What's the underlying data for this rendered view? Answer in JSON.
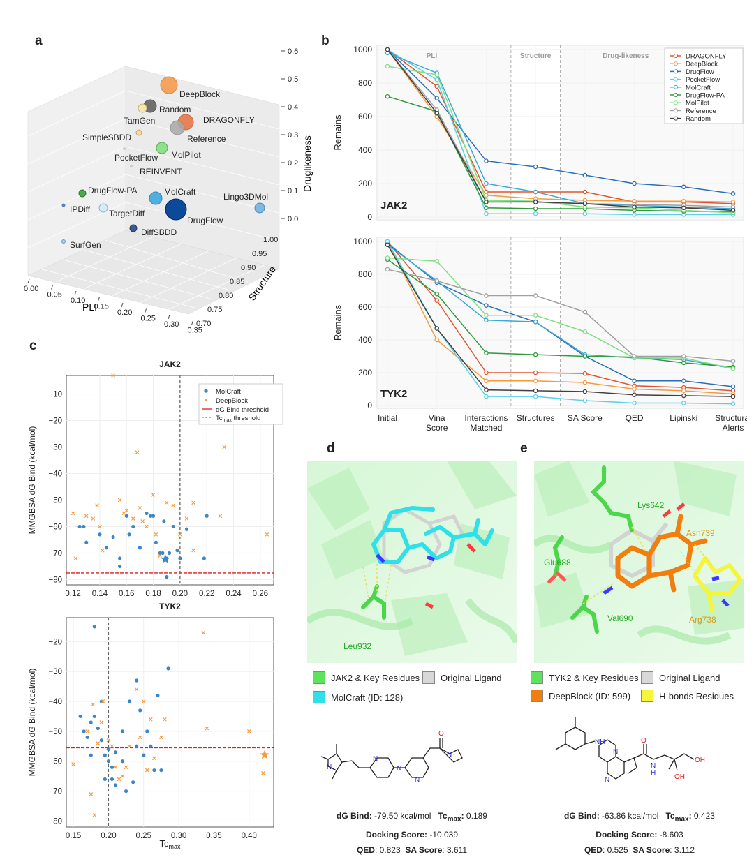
{
  "panels": {
    "a": "a",
    "b": "b",
    "c": "c",
    "d": "d",
    "e": "e"
  },
  "panel_a": {
    "xlabel": "PLI",
    "ylabel": "Structure",
    "zlabel": "Druglikeness",
    "x_ticks": [
      "0.00",
      "0.05",
      "0.10",
      "0.15",
      "0.20",
      "0.25",
      "0.30",
      "0.35"
    ],
    "y_ticks": [
      "0.70",
      "0.75",
      "0.80",
      "0.85",
      "0.90",
      "0.95",
      "1.00"
    ],
    "z_ticks": [
      "0.0",
      "0.1",
      "0.2",
      "0.3",
      "0.4",
      "0.5",
      "0.6"
    ]
  },
  "panel_b": {
    "ylabel": "Remains",
    "sections": [
      "PLI",
      "Structure",
      "Drug-likeness"
    ],
    "x_ticks": [
      "Initial",
      "Vina\nScore",
      "Interactions\nMatched",
      "Structures",
      "SA Score",
      "QED",
      "Lipinski",
      "Structural\nAlerts"
    ],
    "y_ticks": [
      "0",
      "200",
      "400",
      "600",
      "800",
      "1000"
    ],
    "top_label": "JAK2",
    "bottom_label": "TYK2"
  },
  "panel_c": {
    "top_title": "JAK2",
    "bottom_title": "TYK2",
    "ylabel": "MMGBSA dG Bind (kcal/mol)",
    "xlabel": "Tc",
    "xlabel_sub": "max",
    "legend": [
      "MolCraft",
      "DeepBlock",
      "dG Bind threshold",
      "Tc"
    ],
    "legend_tc_sub": "max",
    "legend_tc_tail": " threshold",
    "top_x_ticks": [
      "0.12",
      "0.14",
      "0.16",
      "0.18",
      "0.20",
      "0.22",
      "0.24",
      "0.26"
    ],
    "top_y_ticks": [
      "-10",
      "-20",
      "-30",
      "-40",
      "-50",
      "-60",
      "-70",
      "-80"
    ],
    "bottom_x_ticks": [
      "0.15",
      "0.20",
      "0.25",
      "0.30",
      "0.35",
      "0.40"
    ],
    "bottom_y_ticks": [
      "-20",
      "-30",
      "-40",
      "-50",
      "-60",
      "-70",
      "-80"
    ]
  },
  "panel_d": {
    "residues": [
      "Leu932"
    ],
    "legend": [
      "JAK2 & Key Residues",
      "Original Ligand",
      "MolCraft (ID: 128)"
    ],
    "dG_label": "dG Bind",
    "dG_value": "-79.50 kcal/mol",
    "tc_label": "Tc",
    "tc_sub": "max",
    "tc_value": "0.189",
    "dock_label": "Docking Score",
    "dock_value": "-10.039",
    "qed_label": "QED",
    "qed_value": "0.823",
    "sa_label": "SA Score",
    "sa_value": "3.611",
    "colors": {
      "protein": "#5fe35f",
      "ligand": "#2fe0e8",
      "original": "#d0d0d0"
    }
  },
  "panel_e": {
    "residues": [
      "Lys642",
      "Asn739",
      "Glu688",
      "Val690",
      "Arg738"
    ],
    "legend": [
      "TYK2 & Key Residues",
      "Original Ligand",
      "DeepBlock (ID: 599)",
      "H-bonds Residues"
    ],
    "dG_label": "dG Bind",
    "dG_value": "-63.86 kcal/mol",
    "tc_label": "Tc",
    "tc_sub": "max",
    "tc_value": "0.423",
    "dock_label": "Docking Score",
    "dock_value": "-8.603",
    "qed_label": "QED",
    "qed_value": "0.525",
    "sa_label": "SA Score",
    "sa_value": "3.112",
    "mol_labels": [
      "NH",
      "N",
      "N",
      "O",
      "N",
      "H",
      "OH",
      "OH"
    ],
    "colors": {
      "protein": "#5fe35f",
      "ligand": "#f07f10",
      "original": "#d0d0d0",
      "hbond": "#f5f53a"
    }
  },
  "chart_data": [
    {
      "type": "scatter",
      "title": "",
      "xlabel": "PLI",
      "ylabel": "Structure",
      "zlabel": "Druglikeness",
      "xlim": [
        0.0,
        0.35
      ],
      "ylim": [
        0.7,
        1.0
      ],
      "zlim": [
        0.0,
        0.6
      ],
      "points": [
        {
          "name": "DeepBlock",
          "color": "#f4a460"
        },
        {
          "name": "Random",
          "color": "#707070"
        },
        {
          "name": "TamGen",
          "color": "#f5e6b0"
        },
        {
          "name": "DRAGONFLY",
          "color": "#e8784a"
        },
        {
          "name": "Reference",
          "color": "#a9a9a9"
        },
        {
          "name": "SimpleSBDD",
          "color": "#f7d9a0"
        },
        {
          "name": "MolPilot",
          "color": "#90e090"
        },
        {
          "name": "PocketFlow",
          "color": "#cccccc"
        },
        {
          "name": "REINVENT",
          "color": "#cccccc"
        },
        {
          "name": "DrugFlow-PA",
          "color": "#4ea84e"
        },
        {
          "name": "MolCraft",
          "color": "#4fb0e0"
        },
        {
          "name": "Lingo3DMol",
          "color": "#80b8e0"
        },
        {
          "name": "IPDiff",
          "color": "#5a80c0"
        },
        {
          "name": "TargetDiff",
          "color": "#d8ecf8"
        },
        {
          "name": "DrugFlow",
          "color": "#0b4a9a"
        },
        {
          "name": "DiffSBDD",
          "color": "#3a5a90"
        },
        {
          "name": "SurfGen",
          "color": "#a8d0f0"
        }
      ]
    },
    {
      "type": "line",
      "title": "JAK2",
      "ylabel": "Remains",
      "ylim": [
        0,
        1000
      ],
      "categories": [
        "Initial",
        "Vina Score",
        "Interactions Matched",
        "Structures",
        "SA Score",
        "QED",
        "Lipinski",
        "Structural Alerts"
      ],
      "series": [
        {
          "name": "DRAGONFLY",
          "color": "#e0552e",
          "values": [
            1000,
            780,
            150,
            150,
            150,
            90,
            90,
            80
          ]
        },
        {
          "name": "DeepBlock",
          "color": "#f59a3c",
          "values": [
            1000,
            600,
            130,
            110,
            100,
            95,
            95,
            90
          ]
        },
        {
          "name": "DrugFlow",
          "color": "#2a6fb6",
          "values": [
            1000,
            710,
            335,
            300,
            250,
            200,
            180,
            140
          ]
        },
        {
          "name": "PocketFlow",
          "color": "#5ad0e8",
          "values": [
            1000,
            820,
            20,
            20,
            20,
            15,
            15,
            15
          ]
        },
        {
          "name": "MolCraft",
          "color": "#3aa8d8",
          "values": [
            980,
            860,
            200,
            150,
            80,
            70,
            60,
            50
          ]
        },
        {
          "name": "DrugFlow-PA",
          "color": "#2e9a3a",
          "values": [
            720,
            630,
            55,
            50,
            50,
            40,
            35,
            30
          ]
        },
        {
          "name": "MolPilot",
          "color": "#7ee07e",
          "values": [
            900,
            850,
            100,
            95,
            60,
            55,
            40,
            25
          ]
        },
        {
          "name": "Reference",
          "color": "#a0a0a0",
          "values": [
            1000,
            640,
            90,
            90,
            80,
            75,
            70,
            60
          ]
        },
        {
          "name": "Random",
          "color": "#404040",
          "values": [
            1000,
            620,
            90,
            90,
            80,
            60,
            55,
            40
          ]
        }
      ]
    },
    {
      "type": "line",
      "title": "TYK2",
      "ylabel": "Remains",
      "ylim": [
        0,
        1000
      ],
      "categories": [
        "Initial",
        "Vina Score",
        "Interactions Matched",
        "Structures",
        "SA Score",
        "QED",
        "Lipinski",
        "Structural Alerts"
      ],
      "series": [
        {
          "name": "DRAGONFLY",
          "color": "#e0552e",
          "values": [
            1000,
            640,
            200,
            200,
            195,
            120,
            110,
            90
          ]
        },
        {
          "name": "DeepBlock",
          "color": "#f59a3c",
          "values": [
            1000,
            400,
            150,
            150,
            140,
            100,
            90,
            70
          ]
        },
        {
          "name": "DrugFlow",
          "color": "#2a6fb6",
          "values": [
            990,
            750,
            610,
            510,
            300,
            150,
            150,
            115
          ]
        },
        {
          "name": "PocketFlow",
          "color": "#5ad0e8",
          "values": [
            1000,
            470,
            55,
            55,
            30,
            15,
            15,
            10
          ]
        },
        {
          "name": "MolCraft",
          "color": "#3aa8d8",
          "values": [
            980,
            760,
            520,
            510,
            310,
            290,
            280,
            225
          ]
        },
        {
          "name": "DrugFlow-PA",
          "color": "#2e9a3a",
          "values": [
            890,
            680,
            320,
            310,
            300,
            295,
            260,
            235
          ]
        },
        {
          "name": "MolPilot",
          "color": "#7ee07e",
          "values": [
            900,
            880,
            550,
            550,
            450,
            290,
            290,
            225
          ]
        },
        {
          "name": "Reference",
          "color": "#a0a0a0",
          "values": [
            830,
            760,
            670,
            670,
            570,
            300,
            300,
            270
          ]
        },
        {
          "name": "Random",
          "color": "#404040",
          "values": [
            980,
            470,
            95,
            90,
            85,
            65,
            60,
            55
          ]
        }
      ]
    },
    {
      "type": "scatter",
      "title": "JAK2",
      "xlabel": "Tc max",
      "ylabel": "MMGBSA dG Bind (kcal/mol)",
      "xlim": [
        0.115,
        0.27
      ],
      "ylim": [
        -82,
        -3
      ],
      "thresholds": {
        "dG": -77.5,
        "tc": 0.2
      },
      "series": [
        {
          "name": "MolCraft",
          "marker": "circle",
          "color": "#3a86c8",
          "points": [
            [
              0.125,
              -60
            ],
            [
              0.128,
              -60
            ],
            [
              0.13,
              -66
            ],
            [
              0.14,
              -63
            ],
            [
              0.145,
              -68
            ],
            [
              0.15,
              -64
            ],
            [
              0.155,
              -72
            ],
            [
              0.155,
              -75
            ],
            [
              0.16,
              -56
            ],
            [
              0.162,
              -63
            ],
            [
              0.165,
              -60
            ],
            [
              0.17,
              -68
            ],
            [
              0.175,
              -55
            ],
            [
              0.178,
              -56
            ],
            [
              0.18,
              -56
            ],
            [
              0.182,
              -66
            ],
            [
              0.185,
              -70
            ],
            [
              0.187,
              -70
            ],
            [
              0.188,
              -58
            ],
            [
              0.19,
              -72
            ],
            [
              0.19,
              -79
            ],
            [
              0.192,
              -70
            ],
            [
              0.195,
              -60
            ],
            [
              0.198,
              -69
            ],
            [
              0.2,
              -72
            ],
            [
              0.205,
              -61
            ],
            [
              0.22,
              -56
            ],
            [
              0.218,
              -72
            ]
          ]
        },
        {
          "name": "DeepBlock",
          "marker": "x",
          "color": "#f59a3c",
          "points": [
            [
              0.12,
              -55
            ],
            [
              0.122,
              -72
            ],
            [
              0.13,
              -56
            ],
            [
              0.135,
              -57
            ],
            [
              0.138,
              -52
            ],
            [
              0.14,
              -60
            ],
            [
              0.142,
              -69
            ],
            [
              0.15,
              -3
            ],
            [
              0.155,
              -50
            ],
            [
              0.158,
              -55
            ],
            [
              0.16,
              -54
            ],
            [
              0.165,
              -57
            ],
            [
              0.168,
              -32
            ],
            [
              0.17,
              -53
            ],
            [
              0.172,
              -58
            ],
            [
              0.175,
              -60
            ],
            [
              0.18,
              -48
            ],
            [
              0.182,
              -63
            ],
            [
              0.185,
              -71
            ],
            [
              0.19,
              -51
            ],
            [
              0.195,
              -52
            ],
            [
              0.2,
              -63
            ],
            [
              0.205,
              -57
            ],
            [
              0.21,
              -69
            ],
            [
              0.21,
              -51
            ],
            [
              0.23,
              -56
            ],
            [
              0.233,
              -30
            ],
            [
              0.265,
              -63
            ]
          ]
        }
      ]
    },
    {
      "type": "scatter",
      "title": "TYK2",
      "xlabel": "Tc max",
      "ylabel": "MMGBSA dG Bind (kcal/mol)",
      "xlim": [
        0.14,
        0.435
      ],
      "ylim": [
        -82,
        -12
      ],
      "thresholds": {
        "dG": -55.5,
        "tc": 0.2
      },
      "series": [
        {
          "name": "MolCraft",
          "marker": "circle",
          "color": "#3a86c8",
          "points": [
            [
              0.16,
              -45
            ],
            [
              0.165,
              -50
            ],
            [
              0.17,
              -52
            ],
            [
              0.175,
              -47
            ],
            [
              0.175,
              -58
            ],
            [
              0.18,
              -15
            ],
            [
              0.18,
              -45
            ],
            [
              0.185,
              -49
            ],
            [
              0.19,
              -40
            ],
            [
              0.19,
              -53
            ],
            [
              0.195,
              -58
            ],
            [
              0.195,
              -66
            ],
            [
              0.2,
              -56
            ],
            [
              0.2,
              -60
            ],
            [
              0.205,
              -62
            ],
            [
              0.205,
              -66
            ],
            [
              0.21,
              -68
            ],
            [
              0.21,
              -57
            ],
            [
              0.22,
              -60
            ],
            [
              0.22,
              -50
            ],
            [
              0.225,
              -70
            ],
            [
              0.23,
              -40
            ],
            [
              0.235,
              -67
            ],
            [
              0.24,
              -33
            ],
            [
              0.24,
              -55
            ],
            [
              0.245,
              -43
            ],
            [
              0.25,
              -58
            ],
            [
              0.255,
              -50
            ],
            [
              0.26,
              -55
            ],
            [
              0.265,
              -63
            ],
            [
              0.27,
              -38
            ],
            [
              0.275,
              -63
            ],
            [
              0.285,
              -29
            ]
          ]
        },
        {
          "name": "DeepBlock",
          "marker": "x",
          "color": "#f59a3c",
          "points": [
            [
              0.15,
              -61
            ],
            [
              0.17,
              -50
            ],
            [
              0.175,
              -71
            ],
            [
              0.178,
              -41
            ],
            [
              0.18,
              -78
            ],
            [
              0.185,
              -54
            ],
            [
              0.19,
              -47
            ],
            [
              0.192,
              -40
            ],
            [
              0.2,
              -53
            ],
            [
              0.205,
              -55
            ],
            [
              0.21,
              -62
            ],
            [
              0.215,
              -66
            ],
            [
              0.22,
              -65
            ],
            [
              0.225,
              -62
            ],
            [
              0.23,
              -55
            ],
            [
              0.24,
              -36
            ],
            [
              0.245,
              -52
            ],
            [
              0.25,
              -40
            ],
            [
              0.255,
              -63
            ],
            [
              0.26,
              -46
            ],
            [
              0.265,
              -59
            ],
            [
              0.275,
              -52
            ],
            [
              0.28,
              -46
            ],
            [
              0.335,
              -17
            ],
            [
              0.34,
              -49
            ],
            [
              0.4,
              -50
            ],
            [
              0.42,
              -64
            ]
          ]
        }
      ]
    }
  ]
}
